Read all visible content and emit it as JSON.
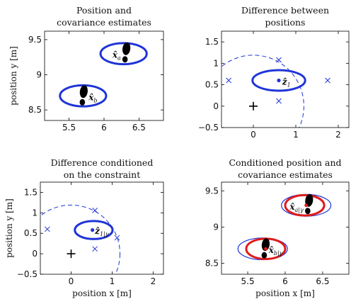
{
  "chart_data": [
    {
      "type": "scatter",
      "title_lines": [
        "Position and",
        "covariance estimates"
      ],
      "xlabel": "",
      "ylabel": "position y [m]",
      "xlim": [
        5.15,
        6.85
      ],
      "ylim": [
        8.35,
        9.62
      ],
      "xticks": [
        5.5,
        6,
        6.5
      ],
      "xtick_labels": [
        "5.5",
        "6",
        "6.5"
      ],
      "yticks": [
        8.5,
        9,
        9.5
      ],
      "ytick_labels": [
        "8.5",
        "9",
        "9.5"
      ],
      "ellipses": [
        {
          "cx": 6.28,
          "cy": 9.3,
          "rx": 0.33,
          "ry": 0.15,
          "color": "#1f35d6",
          "width": 3
        },
        {
          "cx": 5.7,
          "cy": 8.7,
          "rx": 0.33,
          "ry": 0.15,
          "color": "#1f35d6",
          "width": 3
        }
      ],
      "footprints": [
        {
          "x": 6.31,
          "y": 9.31,
          "scale": 1
        },
        {
          "x": 5.7,
          "y": 8.7,
          "scale": 1
        }
      ],
      "points": [],
      "crosses": [],
      "plus": [],
      "dashed_circle": null,
      "annotations": [
        {
          "text": "x̂",
          "sub": "a",
          "x": 6.12,
          "y": 9.28
        },
        {
          "text": "x̂",
          "sub": "b",
          "x": 5.78,
          "y": 8.68
        }
      ]
    },
    {
      "type": "scatter",
      "title_lines": [
        "Difference between",
        "positions"
      ],
      "xlabel": "",
      "ylabel": "",
      "xlim": [
        -0.75,
        2.25
      ],
      "ylim": [
        -0.5,
        1.75
      ],
      "xticks": [
        0,
        1,
        2
      ],
      "xtick_labels": [
        "0",
        "1",
        "2"
      ],
      "yticks": [
        -0.5,
        0,
        0.5,
        1,
        1.5
      ],
      "ytick_labels": [
        "−0.5",
        "0",
        "0.5",
        "1",
        "1.5"
      ],
      "ellipses": [
        {
          "cx": 0.6,
          "cy": 0.6,
          "rx": 0.62,
          "ry": 0.24,
          "color": "#1f35d6",
          "width": 3
        }
      ],
      "footprints": [],
      "points": [
        {
          "x": 0.6,
          "y": 0.6
        }
      ],
      "crosses": [
        {
          "x": -0.58,
          "y": 0.6
        },
        {
          "x": 0.6,
          "y": 1.08
        },
        {
          "x": 0.6,
          "y": 0.12
        },
        {
          "x": 1.75,
          "y": 0.6
        }
      ],
      "plus": [
        {
          "x": 0,
          "y": 0
        }
      ],
      "dashed_circle": {
        "cx": 0,
        "cy": 0,
        "r": 1.19
      },
      "annotations": [
        {
          "text": "ẑ",
          "sub": "1",
          "x": 0.68,
          "y": 0.57
        }
      ]
    },
    {
      "type": "scatter",
      "title_lines": [
        "Difference conditioned",
        "on the constraint"
      ],
      "xlabel": "position x [m]",
      "ylabel": "position y [m]",
      "xlim": [
        -0.75,
        2.25
      ],
      "ylim": [
        -0.5,
        1.75
      ],
      "xticks": [
        0,
        1,
        2
      ],
      "xtick_labels": [
        "0",
        "1",
        "2"
      ],
      "yticks": [
        -0.5,
        0,
        0.5,
        1,
        1.5
      ],
      "ytick_labels": [
        "−0.5",
        "0",
        "0.5",
        "1",
        "1.5"
      ],
      "ellipses": [
        {
          "cx": 0.55,
          "cy": 0.58,
          "rx": 0.46,
          "ry": 0.22,
          "color": "#1f35d6",
          "width": 3
        }
      ],
      "footprints": [],
      "points": [
        {
          "x": 0.52,
          "y": 0.58
        }
      ],
      "crosses": [
        {
          "x": -0.58,
          "y": 0.6
        },
        {
          "x": 0.58,
          "y": 1.06
        },
        {
          "x": 0.58,
          "y": 0.12
        },
        {
          "x": 1.12,
          "y": 0.39
        }
      ],
      "plus": [
        {
          "x": 0,
          "y": 0
        }
      ],
      "dashed_circle": {
        "cx": 0,
        "cy": 0,
        "r": 1.19
      },
      "annotations": [
        {
          "text": "ẑ",
          "sub": "1|γ",
          "x": 0.58,
          "y": 0.56
        }
      ]
    },
    {
      "type": "scatter",
      "title_lines": [
        "Conditioned position and",
        "covariance estimates"
      ],
      "xlabel": "position x [m]",
      "ylabel": "",
      "xlim": [
        5.15,
        6.85
      ],
      "ylim": [
        8.35,
        9.62
      ],
      "xticks": [
        5.5,
        6,
        6.5
      ],
      "xtick_labels": [
        "5.5",
        "6",
        "6.5"
      ],
      "yticks": [
        8.5,
        9,
        9.5
      ],
      "ytick_labels": [
        "8.5",
        "9",
        "9.5"
      ],
      "ellipses": [
        {
          "cx": 6.28,
          "cy": 9.3,
          "rx": 0.33,
          "ry": 0.15,
          "color": "#1f35d6",
          "width": 1.2
        },
        {
          "cx": 5.7,
          "cy": 8.7,
          "rx": 0.33,
          "ry": 0.15,
          "color": "#1f35d6",
          "width": 1.2
        },
        {
          "cx": 6.26,
          "cy": 9.3,
          "rx": 0.26,
          "ry": 0.14,
          "color": "#e01b1b",
          "width": 3
        },
        {
          "cx": 5.74,
          "cy": 8.7,
          "rx": 0.26,
          "ry": 0.14,
          "color": "#e01b1b",
          "width": 3
        }
      ],
      "footprints": [
        {
          "x": 6.31,
          "y": 9.31,
          "scale": 1
        },
        {
          "x": 5.73,
          "y": 8.7,
          "scale": 1
        }
      ],
      "points": [],
      "red_points": [
        {
          "x": 6.28,
          "y": 9.3
        },
        {
          "x": 5.74,
          "y": 8.7
        }
      ],
      "crosses": [],
      "plus": [],
      "dashed_circle": null,
      "annotations": [
        {
          "text": "x̂",
          "sub": "a|γ",
          "x": 6.06,
          "y": 9.28
        },
        {
          "text": "x̂",
          "sub": "b|γ",
          "x": 5.78,
          "y": 8.68
        }
      ]
    }
  ]
}
